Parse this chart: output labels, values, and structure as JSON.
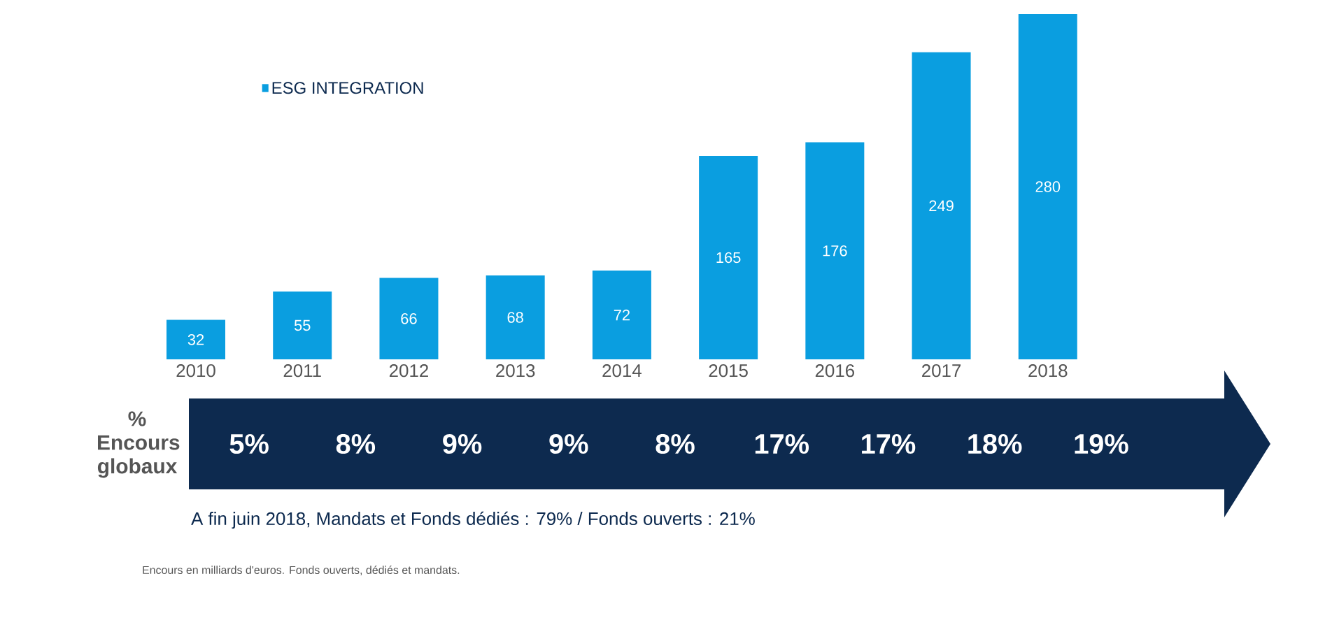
{
  "chart_data": {
    "type": "bar",
    "categories": [
      "2010",
      "2011",
      "2012",
      "2013",
      "2014",
      "2015",
      "2016",
      "2017",
      "2018"
    ],
    "series": [
      {
        "name": "ESG INTEGRATION",
        "color": "#0a9ee0",
        "values": [
          32,
          55,
          66,
          68,
          72,
          165,
          176,
          249,
          280
        ]
      }
    ],
    "data_labels": true,
    "legend": "top left",
    "annotations": [
      "% Encours globaux",
      "5%",
      "8%",
      "9%",
      "9%",
      "8%",
      "17%",
      "17%",
      "18%",
      "19%",
      "A fin juin 2018, Mandats et Fonds dédiés : 79% / Fonds ouverts : 21%",
      "Encours en milliards d'euros. Fonds ouverts, dédiés et mandats."
    ]
  }
}
